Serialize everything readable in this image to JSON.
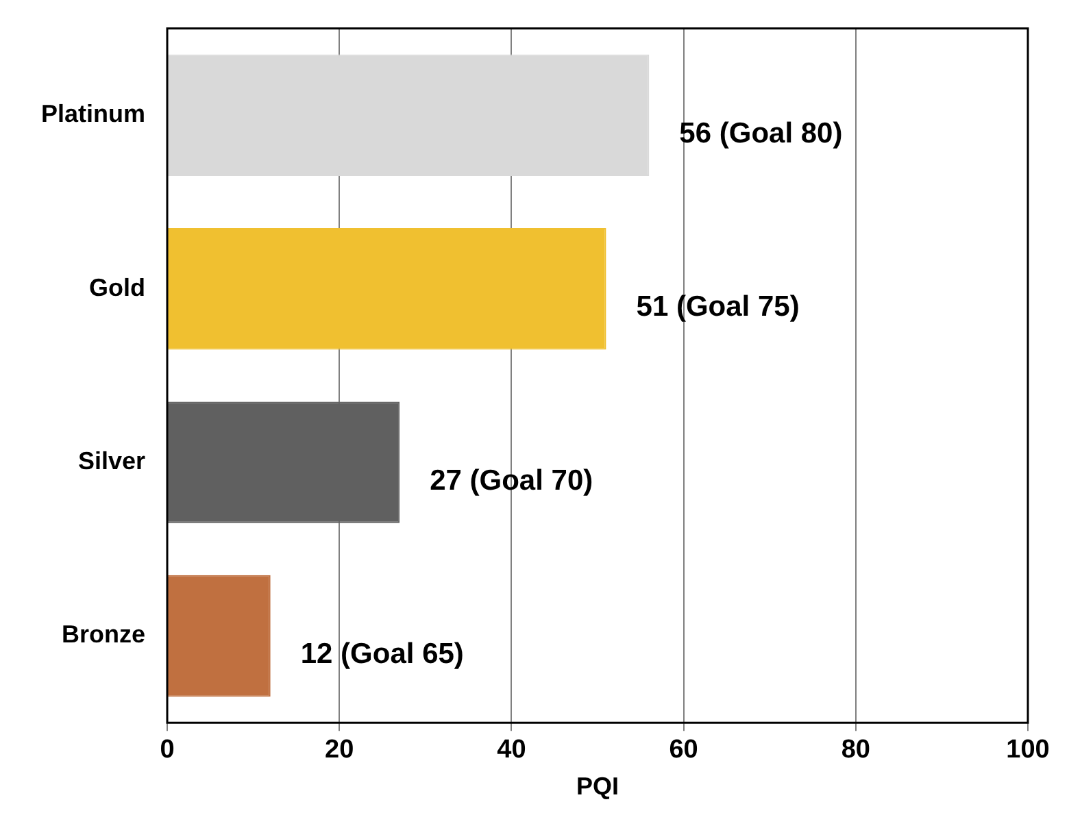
{
  "chart_data": {
    "type": "bar",
    "orientation": "horizontal",
    "xlabel": "PQI",
    "categories": [
      "Platinum",
      "Gold",
      "Silver",
      "Bronze"
    ],
    "values": [
      56,
      51,
      27,
      12
    ],
    "colors": [
      "#d9d9d9",
      "#f0c030",
      "#606060",
      "#c07040"
    ],
    "value_labels": [
      "56 (Goal 80)",
      "51 (Goal 75)",
      "27 (Goal 70)",
      "12 (Goal 65)"
    ],
    "xlim": [
      0,
      100
    ],
    "xticks": [
      0,
      20,
      40,
      60,
      80,
      100
    ],
    "grid": "x",
    "legend": false
  }
}
